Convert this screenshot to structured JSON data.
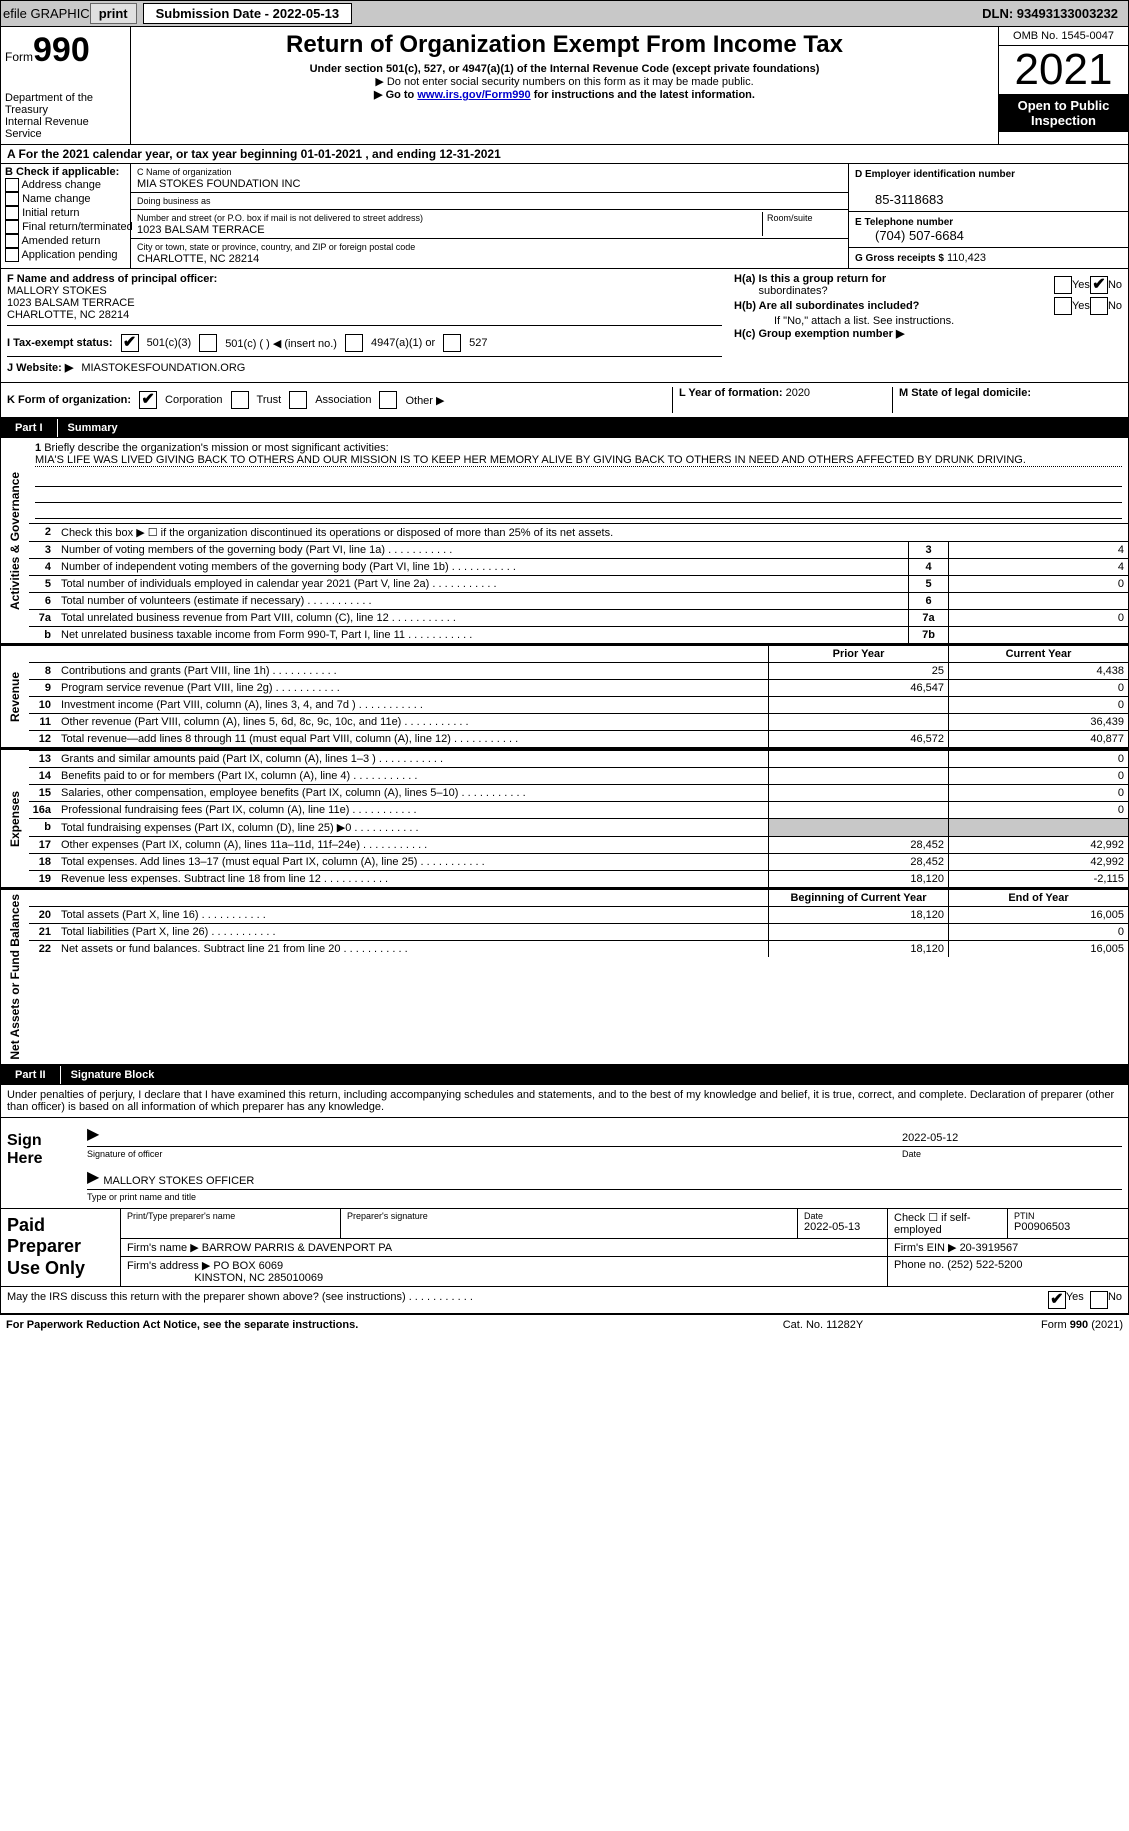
{
  "topbar": {
    "efile": "efile GRAPHIC",
    "print": "print",
    "sub_label": "Submission Date - ",
    "sub_date": "2022-05-13",
    "dln": "DLN: 93493133003232"
  },
  "header": {
    "form_prefix": "Form",
    "form_num": "990",
    "title": "Return of Organization Exempt From Income Tax",
    "sub1": "Under section 501(c), 527, or 4947(a)(1) of the Internal Revenue Code (except private foundations)",
    "sub2": "▶ Do not enter social security numbers on this form as it may be made public.",
    "sub3_pre": "▶ Go to ",
    "sub3_link": "www.irs.gov/Form990",
    "sub3_post": " for instructions and the latest information.",
    "dept": "Department of the Treasury\nInternal Revenue Service",
    "omb": "OMB No. 1545-0047",
    "year": "2021",
    "inspection": "Open to Public Inspection"
  },
  "row_a": "A For the 2021 calendar year, or tax year beginning 01-01-2021    , and ending 12-31-2021",
  "col_b": {
    "title": "B Check if applicable:",
    "items": [
      "Address change",
      "Name change",
      "Initial return",
      "Final return/terminated",
      "Amended return",
      "Application pending"
    ]
  },
  "col_c": {
    "name_lbl": "C Name of organization",
    "name": "MIA STOKES FOUNDATION INC",
    "dba_lbl": "Doing business as",
    "dba": "",
    "addr_lbl": "Number and street (or P.O. box if mail is not delivered to street address)",
    "room_lbl": "Room/suite",
    "addr": "1023 BALSAM TERRACE",
    "city_lbl": "City or town, state or province, country, and ZIP or foreign postal code",
    "city": "CHARLOTTE, NC  28214"
  },
  "col_d": {
    "ein_lbl": "D Employer identification number",
    "ein": "85-3118683",
    "phone_lbl": "E Telephone number",
    "phone": "(704) 507-6684",
    "gross_lbl": "G Gross receipts $",
    "gross": "110,423"
  },
  "section_f": {
    "lbl": "F Name and address of principal officer:",
    "name": "MALLORY STOKES",
    "addr1": "1023 BALSAM TERRACE",
    "addr2": "CHARLOTTE, NC  28214"
  },
  "section_h": {
    "ha_lbl": "H(a)  Is this a group return for",
    "ha_sub": "subordinates?",
    "hb_lbl": "H(b)  Are all subordinates included?",
    "hb_note": "If \"No,\" attach a list. See instructions.",
    "hc_lbl": "H(c)  Group exemption number ▶",
    "yes": "Yes",
    "no": "No"
  },
  "row_i": {
    "lbl": "I    Tax-exempt status:",
    "opt1": "501(c)(3)",
    "opt2": "501(c) (  ) ◀ (insert no.)",
    "opt3": "4947(a)(1) or",
    "opt4": "527"
  },
  "row_j": {
    "lbl": "J   Website: ▶",
    "val": "MIASTOKESFOUNDATION.ORG"
  },
  "row_k": {
    "lbl": "K Form of organization:",
    "corp": "Corporation",
    "trust": "Trust",
    "assoc": "Association",
    "other": "Other ▶"
  },
  "row_l": {
    "lbl": "L Year of formation:",
    "val": "2020"
  },
  "row_m": {
    "lbl": "M State of legal domicile:",
    "val": ""
  },
  "part1": {
    "num": "Part I",
    "title": "Summary"
  },
  "vtabs": {
    "ag": "Activities & Governance",
    "rev": "Revenue",
    "exp": "Expenses",
    "net": "Net Assets or Fund Balances"
  },
  "mission": {
    "lbl_num": "1",
    "lbl": "Briefly describe the organization's mission or most significant activities:",
    "text": "MIA'S LIFE WAS LIVED GIVING BACK TO OTHERS AND OUR MISSION IS TO KEEP HER MEMORY ALIVE BY GIVING BACK TO OTHERS IN NEED AND OTHERS AFFECTED BY DRUNK DRIVING."
  },
  "gov_rows": [
    {
      "n": "2",
      "d": "Check this box ▶ ☐  if the organization discontinued its operations or disposed of more than 25% of its net assets.",
      "box": "",
      "val": ""
    },
    {
      "n": "3",
      "d": "Number of voting members of the governing body (Part VI, line 1a)",
      "box": "3",
      "val": "4"
    },
    {
      "n": "4",
      "d": "Number of independent voting members of the governing body (Part VI, line 1b)",
      "box": "4",
      "val": "4"
    },
    {
      "n": "5",
      "d": "Total number of individuals employed in calendar year 2021 (Part V, line 2a)",
      "box": "5",
      "val": "0"
    },
    {
      "n": "6",
      "d": "Total number of volunteers (estimate if necessary)",
      "box": "6",
      "val": ""
    },
    {
      "n": "7a",
      "d": "Total unrelated business revenue from Part VIII, column (C), line 12",
      "box": "7a",
      "val": "0"
    },
    {
      "n": "b",
      "d": "Net unrelated business taxable income from Form 990-T, Part I, line 11",
      "box": "7b",
      "val": ""
    }
  ],
  "fin_heads": {
    "prior": "Prior Year",
    "curr": "Current Year",
    "beg": "Beginning of Current Year",
    "end": "End of Year"
  },
  "revenue_rows": [
    {
      "n": "8",
      "d": "Contributions and grants (Part VIII, line 1h)",
      "p": "25",
      "c": "4,438"
    },
    {
      "n": "9",
      "d": "Program service revenue (Part VIII, line 2g)",
      "p": "46,547",
      "c": "0"
    },
    {
      "n": "10",
      "d": "Investment income (Part VIII, column (A), lines 3, 4, and 7d )",
      "p": "",
      "c": "0"
    },
    {
      "n": "11",
      "d": "Other revenue (Part VIII, column (A), lines 5, 6d, 8c, 9c, 10c, and 11e)",
      "p": "",
      "c": "36,439"
    },
    {
      "n": "12",
      "d": "Total revenue—add lines 8 through 11 (must equal Part VIII, column (A), line 12)",
      "p": "46,572",
      "c": "40,877"
    }
  ],
  "expense_rows": [
    {
      "n": "13",
      "d": "Grants and similar amounts paid (Part IX, column (A), lines 1–3 )",
      "p": "",
      "c": "0"
    },
    {
      "n": "14",
      "d": "Benefits paid to or for members (Part IX, column (A), line 4)",
      "p": "",
      "c": "0"
    },
    {
      "n": "15",
      "d": "Salaries, other compensation, employee benefits (Part IX, column (A), lines 5–10)",
      "p": "",
      "c": "0"
    },
    {
      "n": "16a",
      "d": "Professional fundraising fees (Part IX, column (A), line 11e)",
      "p": "",
      "c": "0"
    },
    {
      "n": "b",
      "d": "Total fundraising expenses (Part IX, column (D), line 25) ▶0",
      "p": "shaded",
      "c": "shaded"
    },
    {
      "n": "17",
      "d": "Other expenses (Part IX, column (A), lines 11a–11d, 11f–24e)",
      "p": "28,452",
      "c": "42,992"
    },
    {
      "n": "18",
      "d": "Total expenses. Add lines 13–17 (must equal Part IX, column (A), line 25)",
      "p": "28,452",
      "c": "42,992"
    },
    {
      "n": "19",
      "d": "Revenue less expenses. Subtract line 18 from line 12",
      "p": "18,120",
      "c": "-2,115"
    }
  ],
  "net_rows": [
    {
      "n": "20",
      "d": "Total assets (Part X, line 16)",
      "p": "18,120",
      "c": "16,005"
    },
    {
      "n": "21",
      "d": "Total liabilities (Part X, line 26)",
      "p": "",
      "c": "0"
    },
    {
      "n": "22",
      "d": "Net assets or fund balances. Subtract line 21 from line 20",
      "p": "18,120",
      "c": "16,005"
    }
  ],
  "part2": {
    "num": "Part II",
    "title": "Signature Block"
  },
  "sig": {
    "intro": "Under penalties of perjury, I declare that I have examined this return, including accompanying schedules and statements, and to the best of my knowledge and belief, it is true, correct, and complete. Declaration of preparer (other than officer) is based on all information of which preparer has any knowledge.",
    "here": "Sign Here",
    "sig_lbl": "Signature of officer",
    "date_lbl": "Date",
    "date_val": "2022-05-12",
    "name": "MALLORY STOKES  OFFICER",
    "name_lbl": "Type or print name and title"
  },
  "prep": {
    "left": "Paid Preparer Use Only",
    "r1": {
      "name_lbl": "Print/Type preparer's name",
      "name": "",
      "sig_lbl": "Preparer's signature",
      "date_lbl": "Date",
      "date": "2022-05-13",
      "check_lbl": "Check ☐ if self-employed",
      "ptin_lbl": "PTIN",
      "ptin": "P00906503"
    },
    "r2": {
      "firm_lbl": "Firm's name     ▶",
      "firm": "BARROW PARRIS & DAVENPORT PA",
      "ein_lbl": "Firm's EIN ▶",
      "ein": "20-3919567"
    },
    "r3": {
      "addr_lbl": "Firm's address ▶",
      "addr": "PO BOX 6069",
      "city": "KINSTON, NC  285010069",
      "phone_lbl": "Phone no.",
      "phone": "(252) 522-5200"
    }
  },
  "discuss": {
    "text": "May the IRS discuss this return with the preparer shown above? (see instructions)",
    "yes": "Yes",
    "no": "No"
  },
  "footer": {
    "l": "For Paperwork Reduction Act Notice, see the separate instructions.",
    "m": "Cat. No. 11282Y",
    "r": "Form 990 (2021)"
  }
}
